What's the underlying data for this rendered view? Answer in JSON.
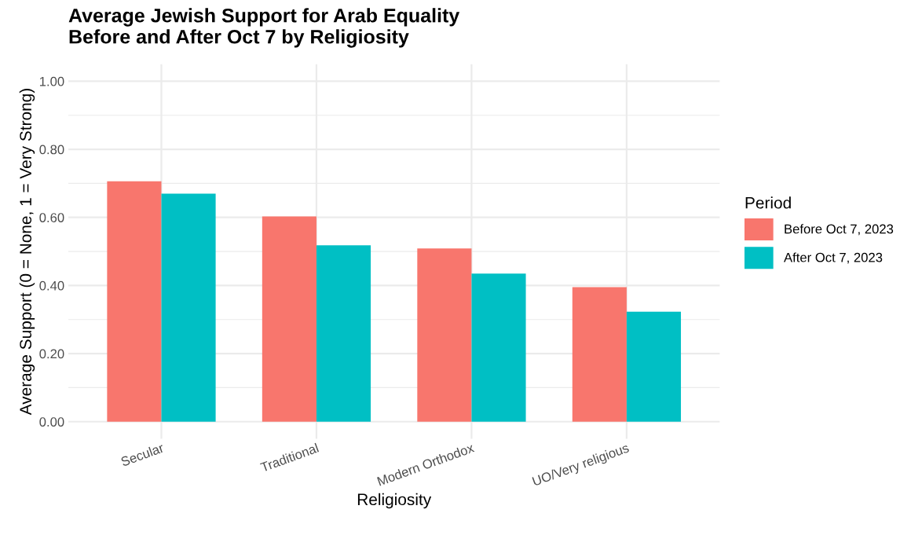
{
  "chart_data": {
    "type": "bar",
    "title": "Average Jewish Support for Arab Equality\nBefore and After Oct 7 by Religiosity",
    "xlabel": "Religiosity",
    "ylabel": "Average Support (0 = None, 1 = Very Strong)",
    "legend_title": "Period",
    "categories": [
      "Secular",
      "Traditional",
      "Modern Orthodox",
      "UO/Very religious"
    ],
    "series": [
      {
        "name": "Before Oct 7, 2023",
        "color": "#f8766d",
        "values": [
          0.706,
          0.603,
          0.509,
          0.395
        ]
      },
      {
        "name": "After Oct 7, 2023",
        "color": "#00bfc4",
        "values": [
          0.67,
          0.518,
          0.435,
          0.323
        ]
      }
    ],
    "ylim": [
      -0.05,
      1.05
    ],
    "yticks": [
      {
        "value": 0.0,
        "label": "0.00"
      },
      {
        "value": 0.1,
        "label": null
      },
      {
        "value": 0.2,
        "label": "0.20"
      },
      {
        "value": 0.3,
        "label": null
      },
      {
        "value": 0.4,
        "label": "0.40"
      },
      {
        "value": 0.5,
        "label": null
      },
      {
        "value": 0.6,
        "label": "0.60"
      },
      {
        "value": 0.7,
        "label": null
      },
      {
        "value": 0.8,
        "label": "0.80"
      },
      {
        "value": 0.9,
        "label": null
      },
      {
        "value": 1.0,
        "label": "1.00"
      }
    ],
    "grid": true,
    "legend": "right"
  }
}
